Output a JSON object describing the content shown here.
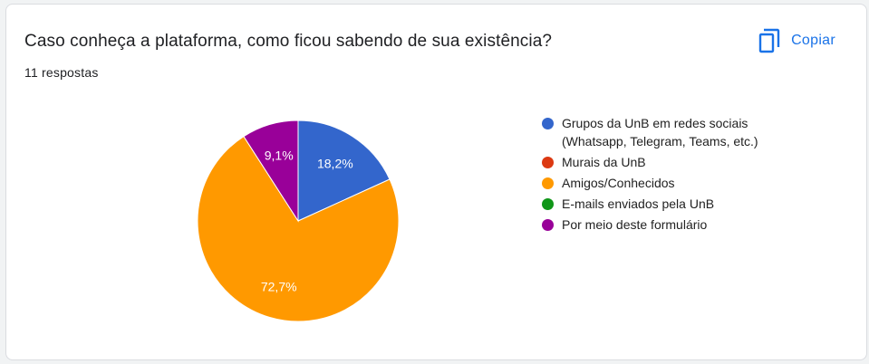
{
  "header": {
    "title": "Caso conheça a plataforma, como ficou sabendo de sua existência?",
    "response_count": "11 respostas",
    "copy_label": "Copiar",
    "copy_icon": "copy-icon"
  },
  "colors": {
    "accent": "#1a73e8"
  },
  "chart_data": {
    "type": "pie",
    "categories": [
      "Grupos da UnB em redes sociais (Whatsapp, Telegram, Teams, etc.)",
      "Murais da UnB",
      "Amigos/Conhecidos",
      "E-mails enviados pela UnB",
      "Por meio deste formulário"
    ],
    "values": [
      18.2,
      0,
      72.7,
      0,
      9.1
    ],
    "data_labels": [
      "18,2%",
      "",
      "72,7%",
      "",
      "9,1%"
    ],
    "colors": [
      "#3366cc",
      "#dc3912",
      "#ff9900",
      "#109618",
      "#990099"
    ],
    "legend_position": "right",
    "start_angle_deg": 90,
    "direction": "clockwise"
  }
}
